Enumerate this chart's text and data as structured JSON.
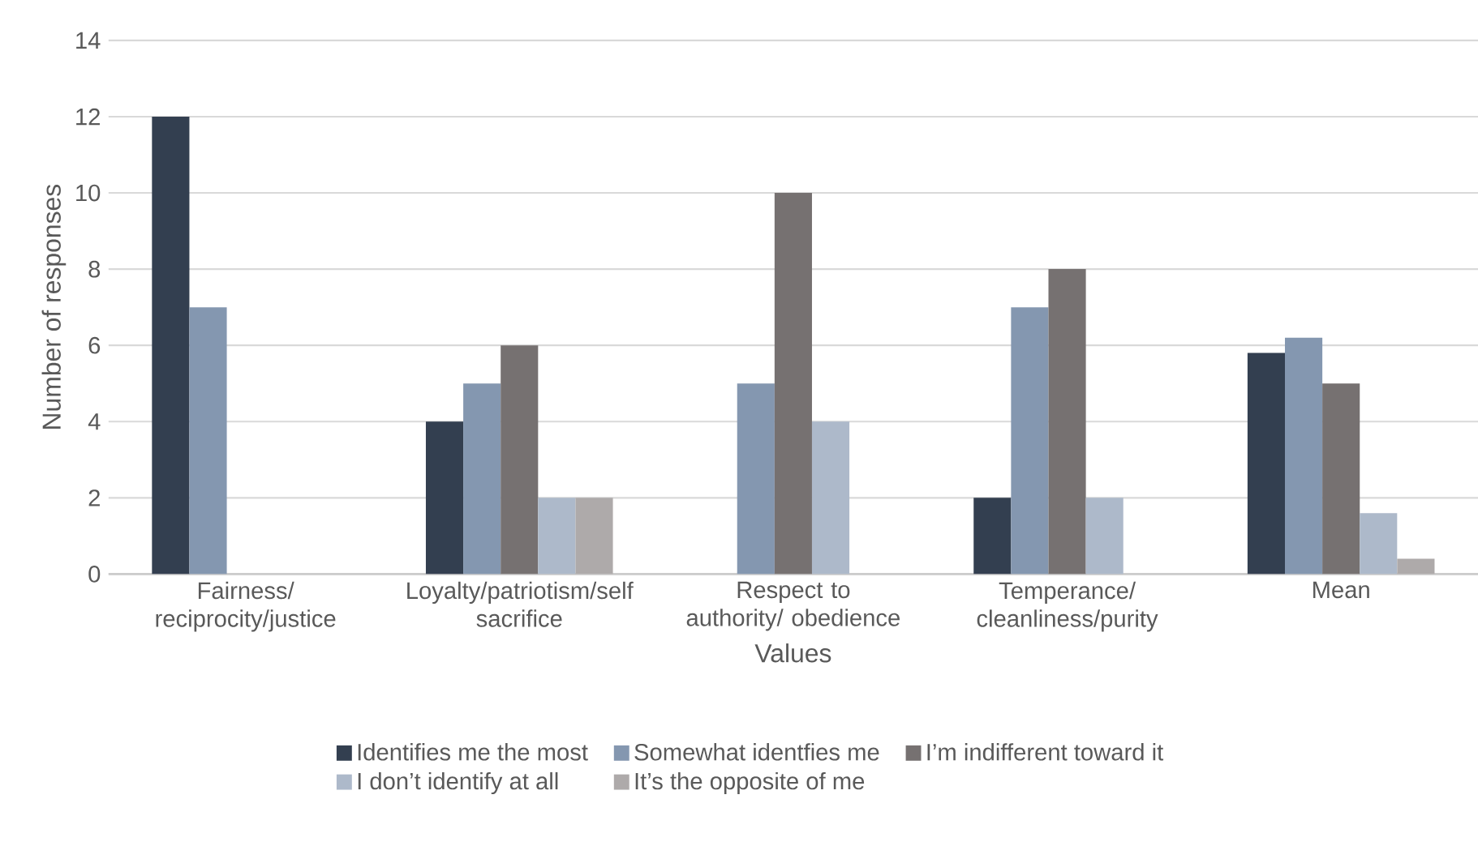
{
  "chart_data": {
    "type": "bar",
    "xlabel": "Values",
    "ylabel": "Number of responses",
    "categories": [
      "Fairness/ reciprocity/justice",
      "Loyalty/patriotism/self sacrifice",
      "Respect to authority/ obedience",
      "Temperance/ cleanliness/purity",
      "Mean"
    ],
    "series": [
      {
        "name": "Identifies me the most",
        "color": "#333f50",
        "values": [
          12,
          4,
          0,
          2,
          5.8
        ]
      },
      {
        "name": "Somewhat identfies me",
        "color": "#8497b0",
        "values": [
          7,
          5,
          5,
          7,
          6.2
        ]
      },
      {
        "name": "I’m indifferent toward it",
        "color": "#767171",
        "values": [
          0,
          6,
          10,
          8,
          5
        ]
      },
      {
        "name": "I don’t identify at all",
        "color": "#adb9ca",
        "values": [
          0,
          2,
          4,
          2,
          1.6
        ]
      },
      {
        "name": "It’s the opposite of me",
        "color": "#aeaaaa",
        "values": [
          0,
          2,
          0,
          0,
          0.4
        ]
      }
    ],
    "ylim": [
      0,
      14
    ],
    "yticks": [
      0,
      2,
      4,
      6,
      8,
      10,
      12,
      14
    ],
    "grid": "y",
    "legend": "bottom"
  }
}
